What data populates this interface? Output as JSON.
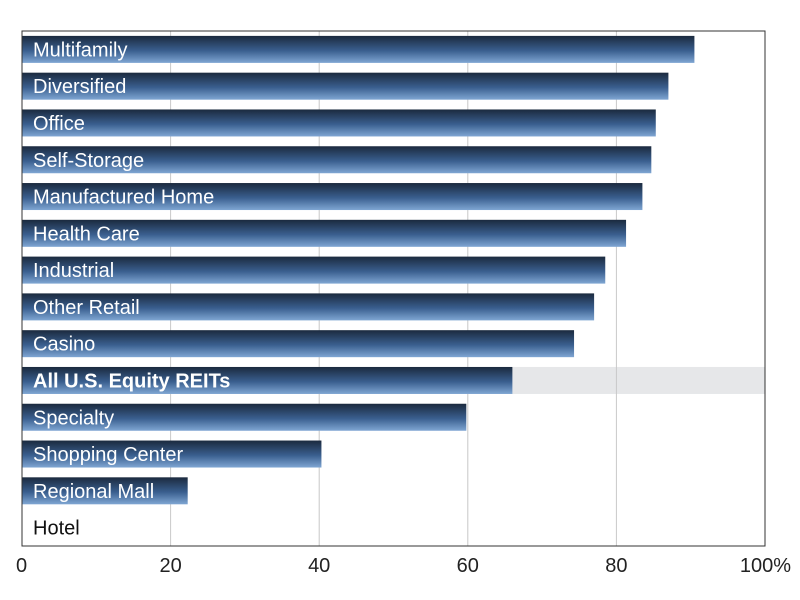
{
  "chart_data": {
    "type": "bar",
    "orientation": "horizontal",
    "categories": [
      "Multifamily",
      "Diversified",
      "Office",
      "Self-Storage",
      "Manufactured Home",
      "Health Care",
      "Industrial",
      "Other Retail",
      "Casino",
      "All U.S. Equity REITs",
      "Specialty",
      "Shopping Center",
      "Regional Mall",
      "Hotel"
    ],
    "values": [
      90.5,
      87.0,
      85.3,
      84.7,
      83.5,
      81.3,
      78.5,
      77.0,
      74.3,
      66.0,
      59.8,
      40.3,
      22.3,
      0
    ],
    "highlight_category": "All U.S. Equity REITs",
    "xlim": [
      0,
      100
    ],
    "xticks": [
      "0",
      "20",
      "40",
      "60",
      "80",
      "100%"
    ],
    "grid": "vertical",
    "colors": {
      "bar_dark": "#1b2a3e",
      "bar_mid": "#3a5f8f",
      "bar_light": "#7fa6d3",
      "highlight_band": "#e6e7e9",
      "gridline": "#c8c8c8",
      "frame": "#333333"
    }
  }
}
